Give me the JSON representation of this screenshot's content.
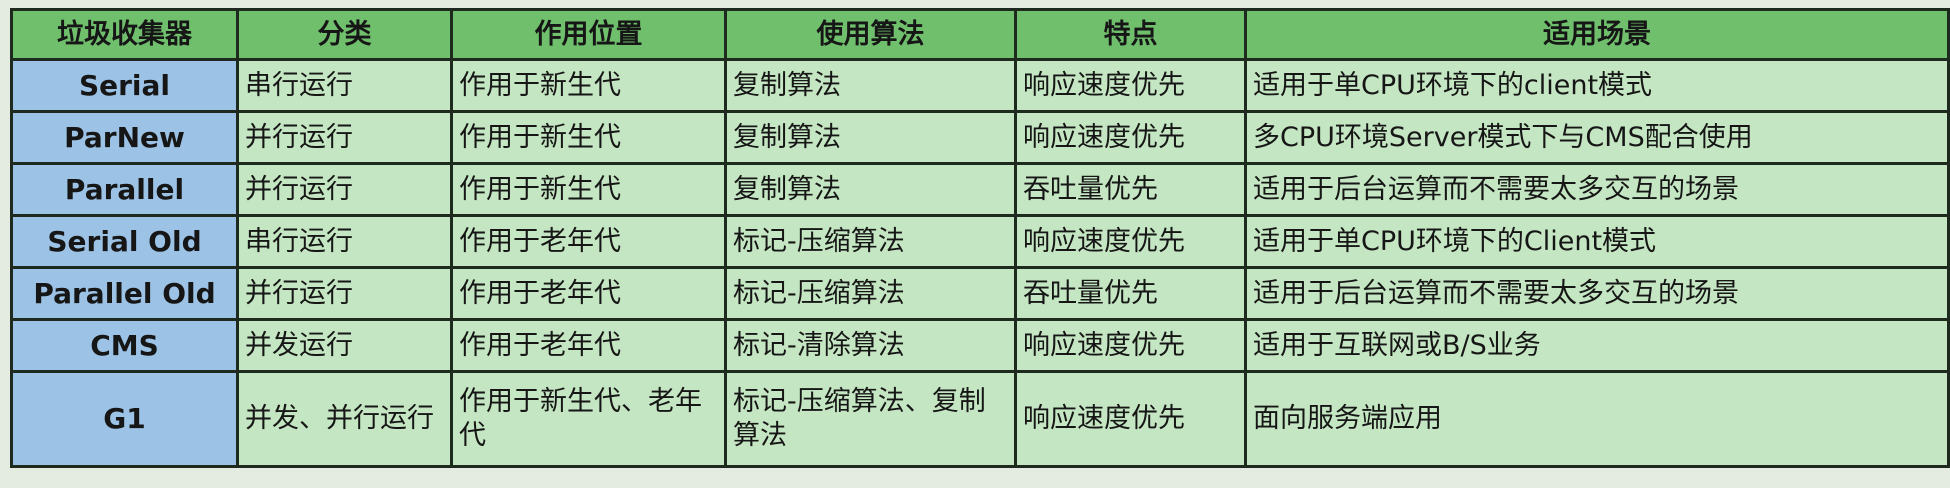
{
  "colors": {
    "header_bg": "#6fbf6c",
    "name_col_bg": "#9cc3e6",
    "cell_bg": "#c5e6c2",
    "border": "#1e2a1e"
  },
  "headers": [
    "垃圾收集器",
    "分类",
    "作用位置",
    "使用算法",
    "特点",
    "适用场景"
  ],
  "rows": [
    [
      "Serial",
      "串行运行",
      "作用于新生代",
      "复制算法",
      "响应速度优先",
      "适用于单CPU环境下的client模式"
    ],
    [
      "ParNew",
      "并行运行",
      "作用于新生代",
      "复制算法",
      "响应速度优先",
      "多CPU环境Server模式下与CMS配合使用"
    ],
    [
      "Parallel",
      "并行运行",
      "作用于新生代",
      "复制算法",
      "吞吐量优先",
      "适用于后台运算而不需要太多交互的场景"
    ],
    [
      "Serial Old",
      "串行运行",
      "作用于老年代",
      "标记-压缩算法",
      "响应速度优先",
      "适用于单CPU环境下的Client模式"
    ],
    [
      "Parallel Old",
      "并行运行",
      "作用于老年代",
      "标记-压缩算法",
      "吞吐量优先",
      "适用于后台运算而不需要太多交互的场景"
    ],
    [
      "CMS",
      "并发运行",
      "作用于老年代",
      "标记-清除算法",
      "响应速度优先",
      "适用于互联网或B/S业务"
    ],
    [
      "G1",
      "并发、并行运行",
      "作用于新生代、老年代",
      "标记-压缩算法、复制算法",
      "响应速度优先",
      "面向服务端应用"
    ]
  ]
}
